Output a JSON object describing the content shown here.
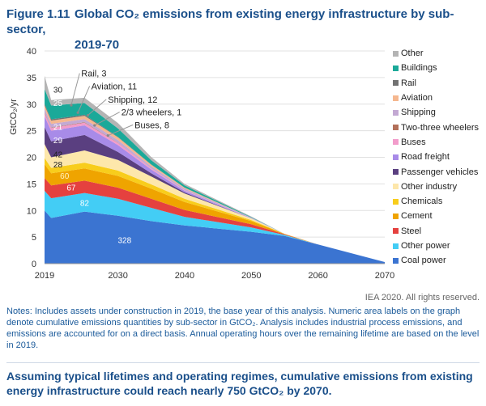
{
  "title": {
    "number": "Figure 1.11",
    "line1": "Global CO₂ emissions from existing energy infrastructure by sub-sector,",
    "line2": "2019-70"
  },
  "credit": "IEA 2020. All rights reserved.",
  "notes": "Notes: Includes assets under construction in 2019, the base year of this analysis. Numeric area labels on the graph denote cumulative emissions quantities by sub-sector in GtCO₂. Analysis includes industrial process emissions, and emissions are accounted for on a direct basis. Annual operating hours over the remaining lifetime are based on the level in 2019.",
  "conclusion": "Assuming typical lifetimes and operating regimes, cumulative emissions from existing energy infrastructure could reach nearly 750 GtCO₂ by 2070.",
  "chart_data": {
    "type": "area",
    "ylabel": "GtCO₂/yr",
    "ylim": [
      0,
      40
    ],
    "yticks": [
      0,
      5,
      10,
      15,
      20,
      25,
      30,
      35,
      40
    ],
    "xticks": [
      2019,
      2030,
      2040,
      2050,
      2060,
      2070
    ],
    "xlim": [
      2019,
      2070
    ],
    "grid": true,
    "legend_position": "right",
    "x": [
      2019,
      2020,
      2025,
      2030,
      2035,
      2040,
      2050,
      2055,
      2060,
      2070
    ],
    "series": [
      {
        "name": "Coal power",
        "color": "#3b74d1",
        "values": [
          10,
          8.6,
          9.8,
          9.0,
          8.0,
          7.2,
          6.0,
          5.2,
          3.6,
          0.3
        ],
        "label": "328",
        "label_at": [
          2031,
          4.5
        ],
        "label_color": "#ffffff"
      },
      {
        "name": "Other power",
        "color": "#43cdf5",
        "values": [
          3.7,
          3.7,
          3.5,
          3.2,
          2.5,
          1.6,
          0.8,
          0.2,
          0,
          0
        ],
        "label": "82",
        "label_at": [
          2025,
          11.5
        ],
        "label_color": "#ffffff"
      },
      {
        "name": "Steel",
        "color": "#e5413f",
        "values": [
          2.4,
          2.4,
          2.3,
          2.1,
          1.7,
          1.3,
          0.6,
          0.1,
          0,
          0
        ],
        "label": "67",
        "label_at": [
          2023,
          14.4
        ],
        "label_color": "#ffffff"
      },
      {
        "name": "Cement",
        "color": "#efa400",
        "values": [
          2.6,
          2.3,
          2.3,
          2.2,
          1.9,
          1.5,
          0.6,
          0.1,
          0,
          0
        ],
        "label": "60",
        "label_at": [
          2022,
          16.6
        ],
        "label_color": "#fff3c0"
      },
      {
        "name": "Chemicals",
        "color": "#f8cd1c",
        "values": [
          1.2,
          1.0,
          1.1,
          1.0,
          0.8,
          0.6,
          0.2,
          0,
          0,
          0
        ],
        "label": "28",
        "label_at": [
          2021,
          18.7
        ],
        "label_color": "#222222"
      },
      {
        "name": "Other industry",
        "color": "#fde7ab",
        "values": [
          2.6,
          2.0,
          2.3,
          2.0,
          1.5,
          1.0,
          0.3,
          0,
          0,
          0
        ],
        "label": "42",
        "label_at": [
          2021,
          20.6
        ],
        "label_color": "#222222"
      },
      {
        "name": "Passenger vehicles",
        "color": "#5a3f80",
        "values": [
          3.2,
          3.0,
          2.9,
          1.5,
          0.6,
          0.2,
          0,
          0,
          0,
          0
        ],
        "label": "29",
        "label_at": [
          2021,
          23.3
        ],
        "label_color": "#ffffff"
      },
      {
        "name": "Road freight",
        "color": "#a88be8",
        "values": [
          2.0,
          2.0,
          1.8,
          1.3,
          0.7,
          0.3,
          0.05,
          0,
          0,
          0
        ],
        "label": "21",
        "label_at": [
          2021,
          25.8
        ],
        "label_color": "#ffffff"
      },
      {
        "name": "Buses",
        "color": "#f29ccb",
        "values": [
          0.6,
          0.5,
          0.5,
          0.4,
          0.2,
          0.1,
          0,
          0,
          0,
          0
        ]
      },
      {
        "name": "Two-three wheelers",
        "color": "#b3705a",
        "values": [
          0.15,
          0.1,
          0.1,
          0.05,
          0,
          0,
          0,
          0,
          0,
          0
        ]
      },
      {
        "name": "Shipping",
        "color": "#c3a9d3",
        "values": [
          0.7,
          0.7,
          0.6,
          0.5,
          0.4,
          0.3,
          0.1,
          0,
          0,
          0
        ]
      },
      {
        "name": "Aviation",
        "color": "#f5b78f",
        "values": [
          0.6,
          0.6,
          0.6,
          0.5,
          0.3,
          0.2,
          0,
          0,
          0,
          0
        ]
      },
      {
        "name": "Rail",
        "color": "#727272",
        "values": [
          0.3,
          0.25,
          0.2,
          0.1,
          0.05,
          0,
          0,
          0,
          0,
          0
        ]
      },
      {
        "name": "Buildings",
        "color": "#1ba999",
        "values": [
          2.8,
          2.6,
          2.2,
          1.6,
          0.8,
          0.4,
          0.1,
          0,
          0,
          0
        ],
        "label": "25",
        "label_at": [
          2021,
          30.3
        ],
        "label_color": "#ffffff"
      },
      {
        "name": "Other",
        "color": "#b4b4b4",
        "values": [
          2.5,
          1.0,
          1.0,
          1.0,
          0.6,
          0.3,
          0.1,
          0,
          0,
          0
        ],
        "label": "30",
        "label_at": [
          2021,
          32.8
        ],
        "label_color": "#222222"
      }
    ],
    "annotations": [
      {
        "text": "Rail, 3",
        "text_at": [
          2024.5,
          35.8
        ],
        "point": [
          2023,
          29.8
        ]
      },
      {
        "text": "Aviation, 11",
        "text_at": [
          2026,
          33.4
        ],
        "point": [
          2024,
          28.4
        ]
      },
      {
        "text": "Shipping, 12",
        "text_at": [
          2028.5,
          30.9
        ],
        "point": [
          2025.5,
          27.9
        ]
      },
      {
        "text": "2/3 wheelers, 1",
        "text_at": [
          2030.5,
          28.5
        ],
        "point": [
          2026.5,
          26.0
        ]
      },
      {
        "text": "Buses, 8",
        "text_at": [
          2032.5,
          26.1
        ],
        "point": [
          2028.5,
          24.1
        ]
      }
    ]
  }
}
